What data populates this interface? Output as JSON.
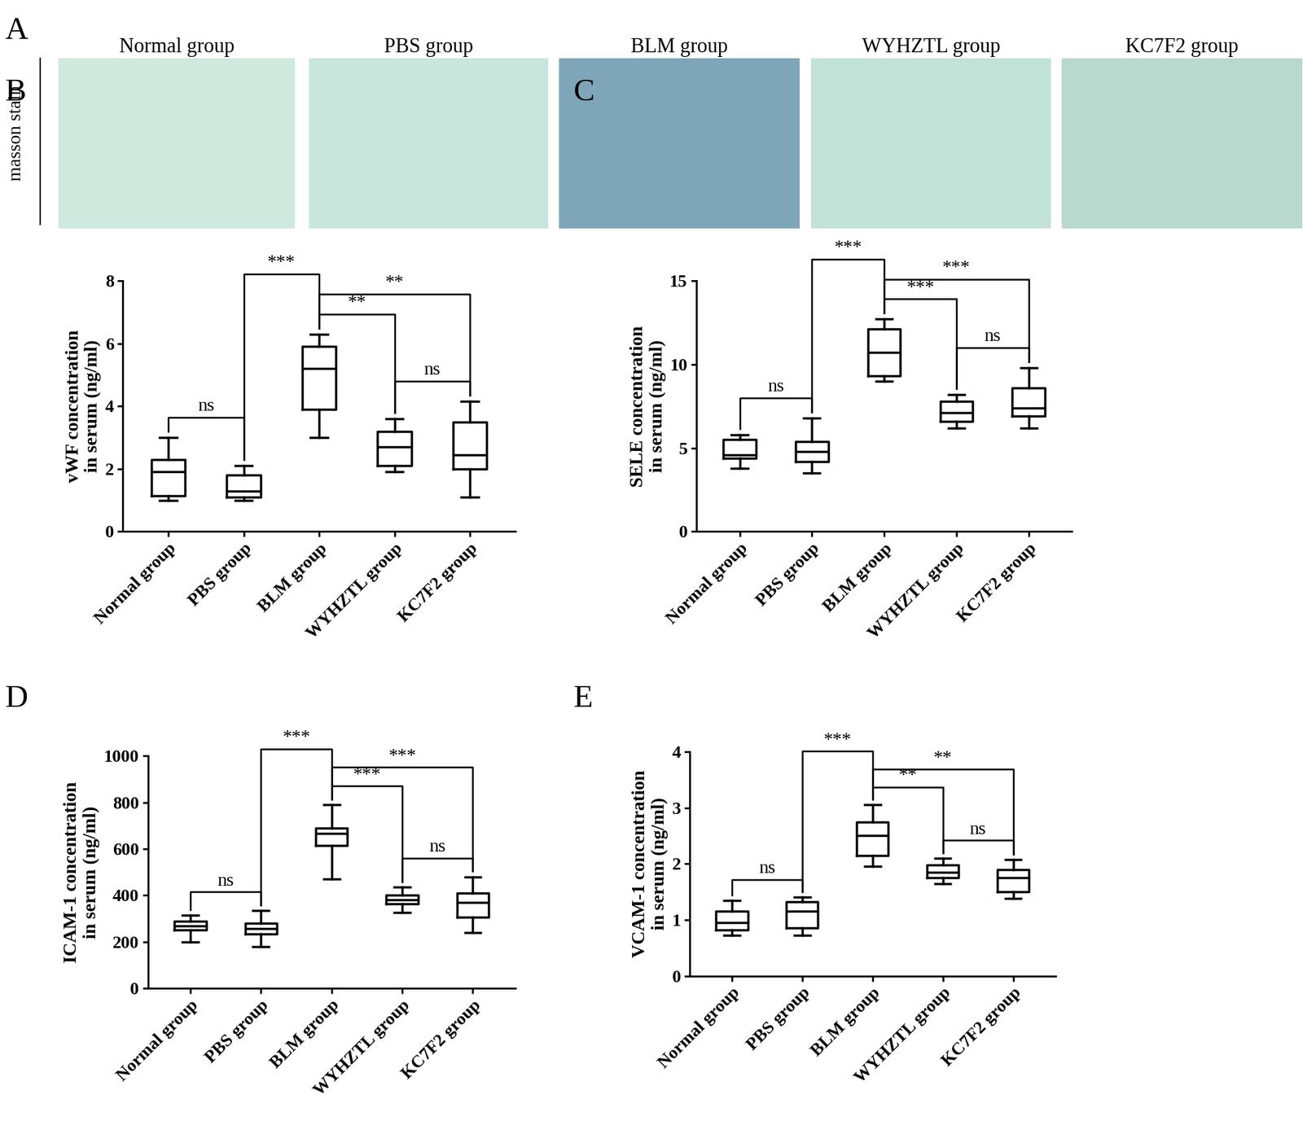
{
  "panel_a": {
    "letter": "A",
    "row_label": "masson stain",
    "titles": [
      "Normal group",
      "PBS group",
      "BLM group",
      "WYHZTL group",
      "KC7F2 group"
    ]
  },
  "chart_data": [
    {
      "letter": "B",
      "type": "box",
      "y_label": "vWF concentration\nin serum (ng/ml)",
      "categories": [
        "Normal group",
        "PBS group",
        "BLM group",
        "WYHZTL group",
        "KC7F2 group"
      ],
      "boxes": {
        "min": [
          1.0,
          1.0,
          3.0,
          1.9,
          1.1
        ],
        "q1": [
          1.15,
          1.1,
          3.9,
          2.1,
          2.0
        ],
        "median": [
          1.9,
          1.3,
          5.2,
          2.7,
          2.45
        ],
        "q3": [
          2.3,
          1.8,
          5.9,
          3.2,
          3.5
        ],
        "max": [
          3.0,
          2.1,
          6.3,
          3.6,
          4.15
        ]
      },
      "ylim": [
        0,
        8
      ],
      "yticks": [
        0,
        2,
        4,
        6,
        8
      ],
      "comparisons": [
        {
          "groups": [
            0,
            1
          ],
          "label": "ns"
        },
        {
          "groups": [
            3,
            4
          ],
          "label": "ns"
        },
        {
          "groups": [
            2,
            3
          ],
          "label": "**"
        },
        {
          "groups": [
            2,
            4
          ],
          "label": "**"
        },
        {
          "groups": [
            1,
            2
          ],
          "label": "***"
        }
      ]
    },
    {
      "letter": "C",
      "type": "box",
      "y_label": "SELE concentration\nin serum (ng/ml)",
      "categories": [
        "Normal group",
        "PBS group",
        "BLM group",
        "WYHZTL group",
        "KC7F2 group"
      ],
      "boxes": {
        "min": [
          3.8,
          3.5,
          9.0,
          6.2,
          6.2
        ],
        "q1": [
          4.4,
          4.2,
          9.3,
          6.6,
          6.9
        ],
        "median": [
          4.6,
          4.8,
          10.7,
          7.1,
          7.4
        ],
        "q3": [
          5.5,
          5.4,
          12.1,
          7.8,
          8.6
        ],
        "max": [
          5.8,
          6.8,
          12.7,
          8.2,
          9.8
        ]
      },
      "ylim": [
        0,
        15
      ],
      "yticks": [
        0,
        5,
        10,
        15
      ],
      "comparisons": [
        {
          "groups": [
            0,
            1
          ],
          "label": "ns"
        },
        {
          "groups": [
            3,
            4
          ],
          "label": "ns"
        },
        {
          "groups": [
            2,
            3
          ],
          "label": "***"
        },
        {
          "groups": [
            2,
            4
          ],
          "label": "***"
        },
        {
          "groups": [
            1,
            2
          ],
          "label": "***"
        }
      ]
    },
    {
      "letter": "D",
      "type": "box",
      "y_label": "ICAM-1 concentration\nin serum (ng/ml)",
      "categories": [
        "Normal group",
        "PBS group",
        "BLM group",
        "WYHZTL group",
        "KC7F2 group"
      ],
      "boxes": {
        "min": [
          200,
          180,
          470,
          325,
          240
        ],
        "q1": [
          250,
          235,
          615,
          365,
          305
        ],
        "median": [
          270,
          258,
          665,
          380,
          370
        ],
        "q3": [
          290,
          280,
          690,
          400,
          410
        ],
        "max": [
          315,
          335,
          790,
          435,
          480
        ]
      },
      "ylim": [
        0,
        1000
      ],
      "yticks": [
        0,
        200,
        400,
        600,
        800,
        1000
      ],
      "comparisons": [
        {
          "groups": [
            0,
            1
          ],
          "label": "ns"
        },
        {
          "groups": [
            3,
            4
          ],
          "label": "ns"
        },
        {
          "groups": [
            2,
            3
          ],
          "label": "***"
        },
        {
          "groups": [
            2,
            4
          ],
          "label": "***"
        },
        {
          "groups": [
            1,
            2
          ],
          "label": "***"
        }
      ]
    },
    {
      "letter": "E",
      "type": "box",
      "y_label": "VCAM-1 concentration\nin serum (ng/ml)",
      "categories": [
        "Normal group",
        "PBS group",
        "BLM group",
        "WYHZTL group",
        "KC7F2 group"
      ],
      "boxes": {
        "min": [
          0.72,
          0.72,
          1.95,
          1.65,
          1.38
        ],
        "q1": [
          0.82,
          0.85,
          2.15,
          1.75,
          1.5
        ],
        "median": [
          0.95,
          1.15,
          2.5,
          1.85,
          1.75
        ],
        "q3": [
          1.15,
          1.32,
          2.75,
          1.98,
          1.9
        ],
        "max": [
          1.35,
          1.4,
          3.05,
          2.1,
          2.07
        ]
      },
      "ylim": [
        0,
        4
      ],
      "yticks": [
        0,
        1,
        2,
        3,
        4
      ],
      "comparisons": [
        {
          "groups": [
            0,
            1
          ],
          "label": "ns"
        },
        {
          "groups": [
            3,
            4
          ],
          "label": "ns"
        },
        {
          "groups": [
            2,
            3
          ],
          "label": "**"
        },
        {
          "groups": [
            2,
            4
          ],
          "label": "**"
        },
        {
          "groups": [
            1,
            2
          ],
          "label": "***"
        }
      ]
    }
  ]
}
